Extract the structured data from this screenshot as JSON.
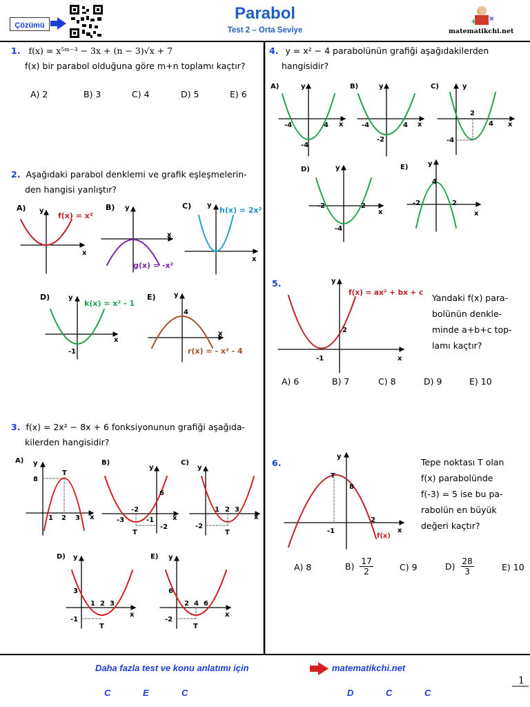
{
  "header": {
    "solution_button": "Çözümü",
    "title": "Parabol",
    "subtitle": "Test 2 – Orta Seviye",
    "brand": "matematikchi.net"
  },
  "q1": {
    "number": "1.",
    "formula": "f(x) = x⁵ᵐ⁻³ − 3x + (n − 3)√x + 7",
    "text": "f(x) bir parabol olduğuna göre m+n toplamı kaçtır?",
    "options": [
      "A) 2",
      "B) 3",
      "C) 4",
      "D) 5",
      "E) 6"
    ]
  },
  "q2": {
    "number": "2.",
    "text1": "Aşağıdaki parabol denklemi ve grafik eşleşmelerin-",
    "text2": "den hangisi yanlıştır?",
    "labels": {
      "a": "A)",
      "b": "B)",
      "c": "C)",
      "d": "D)",
      "e": "E)"
    },
    "funcs": {
      "a": "f(x) = x²",
      "b": "g(x) = -x²",
      "c": "h(x) = 2x²",
      "d": "k(x) = x² - 1",
      "e": "r(x) = - x² - 4"
    }
  },
  "q3": {
    "number": "3.",
    "text1": "f(x) = 2x² − 8x + 6   fonksiyonunun grafiği aşağıda-",
    "text2": "kilerden hangisidir?"
  },
  "q4": {
    "number": "4.",
    "text1": "y = x² − 4   parabolünün grafiği aşağıdakilerden",
    "text2": "hangisidir?"
  },
  "q5": {
    "number": "5.",
    "func": "f(x) = ax² + bx + c",
    "side": [
      "Yandaki f(x) para-",
      "bolünün denkle-",
      "minde  a+b+c top-",
      "lamı kaçtır?"
    ],
    "options": [
      "A) 6",
      "B) 7",
      "C) 8",
      "D) 9",
      "E) 10"
    ]
  },
  "q6": {
    "number": "6.",
    "side": [
      "Tepe noktası T olan",
      "f(x) parabolünde",
      "f(-3) = 5  ise bu pa-",
      "rabolün en büyük",
      "değeri kaçtır?"
    ],
    "options": {
      "a": "A) 8",
      "b_label": "B)",
      "b_num": "17",
      "b_den": "2",
      "c": "C) 9",
      "d_label": "D)",
      "d_num": "28",
      "d_den": "3",
      "e": "E) 10"
    }
  },
  "footer": {
    "text": "Daha fazla test ve konu anlatımı için",
    "site": "matematikchi.net",
    "answers_left": [
      "C",
      "E",
      "C"
    ],
    "answers_right": [
      "D",
      "C",
      "C"
    ],
    "page_number": "1"
  }
}
